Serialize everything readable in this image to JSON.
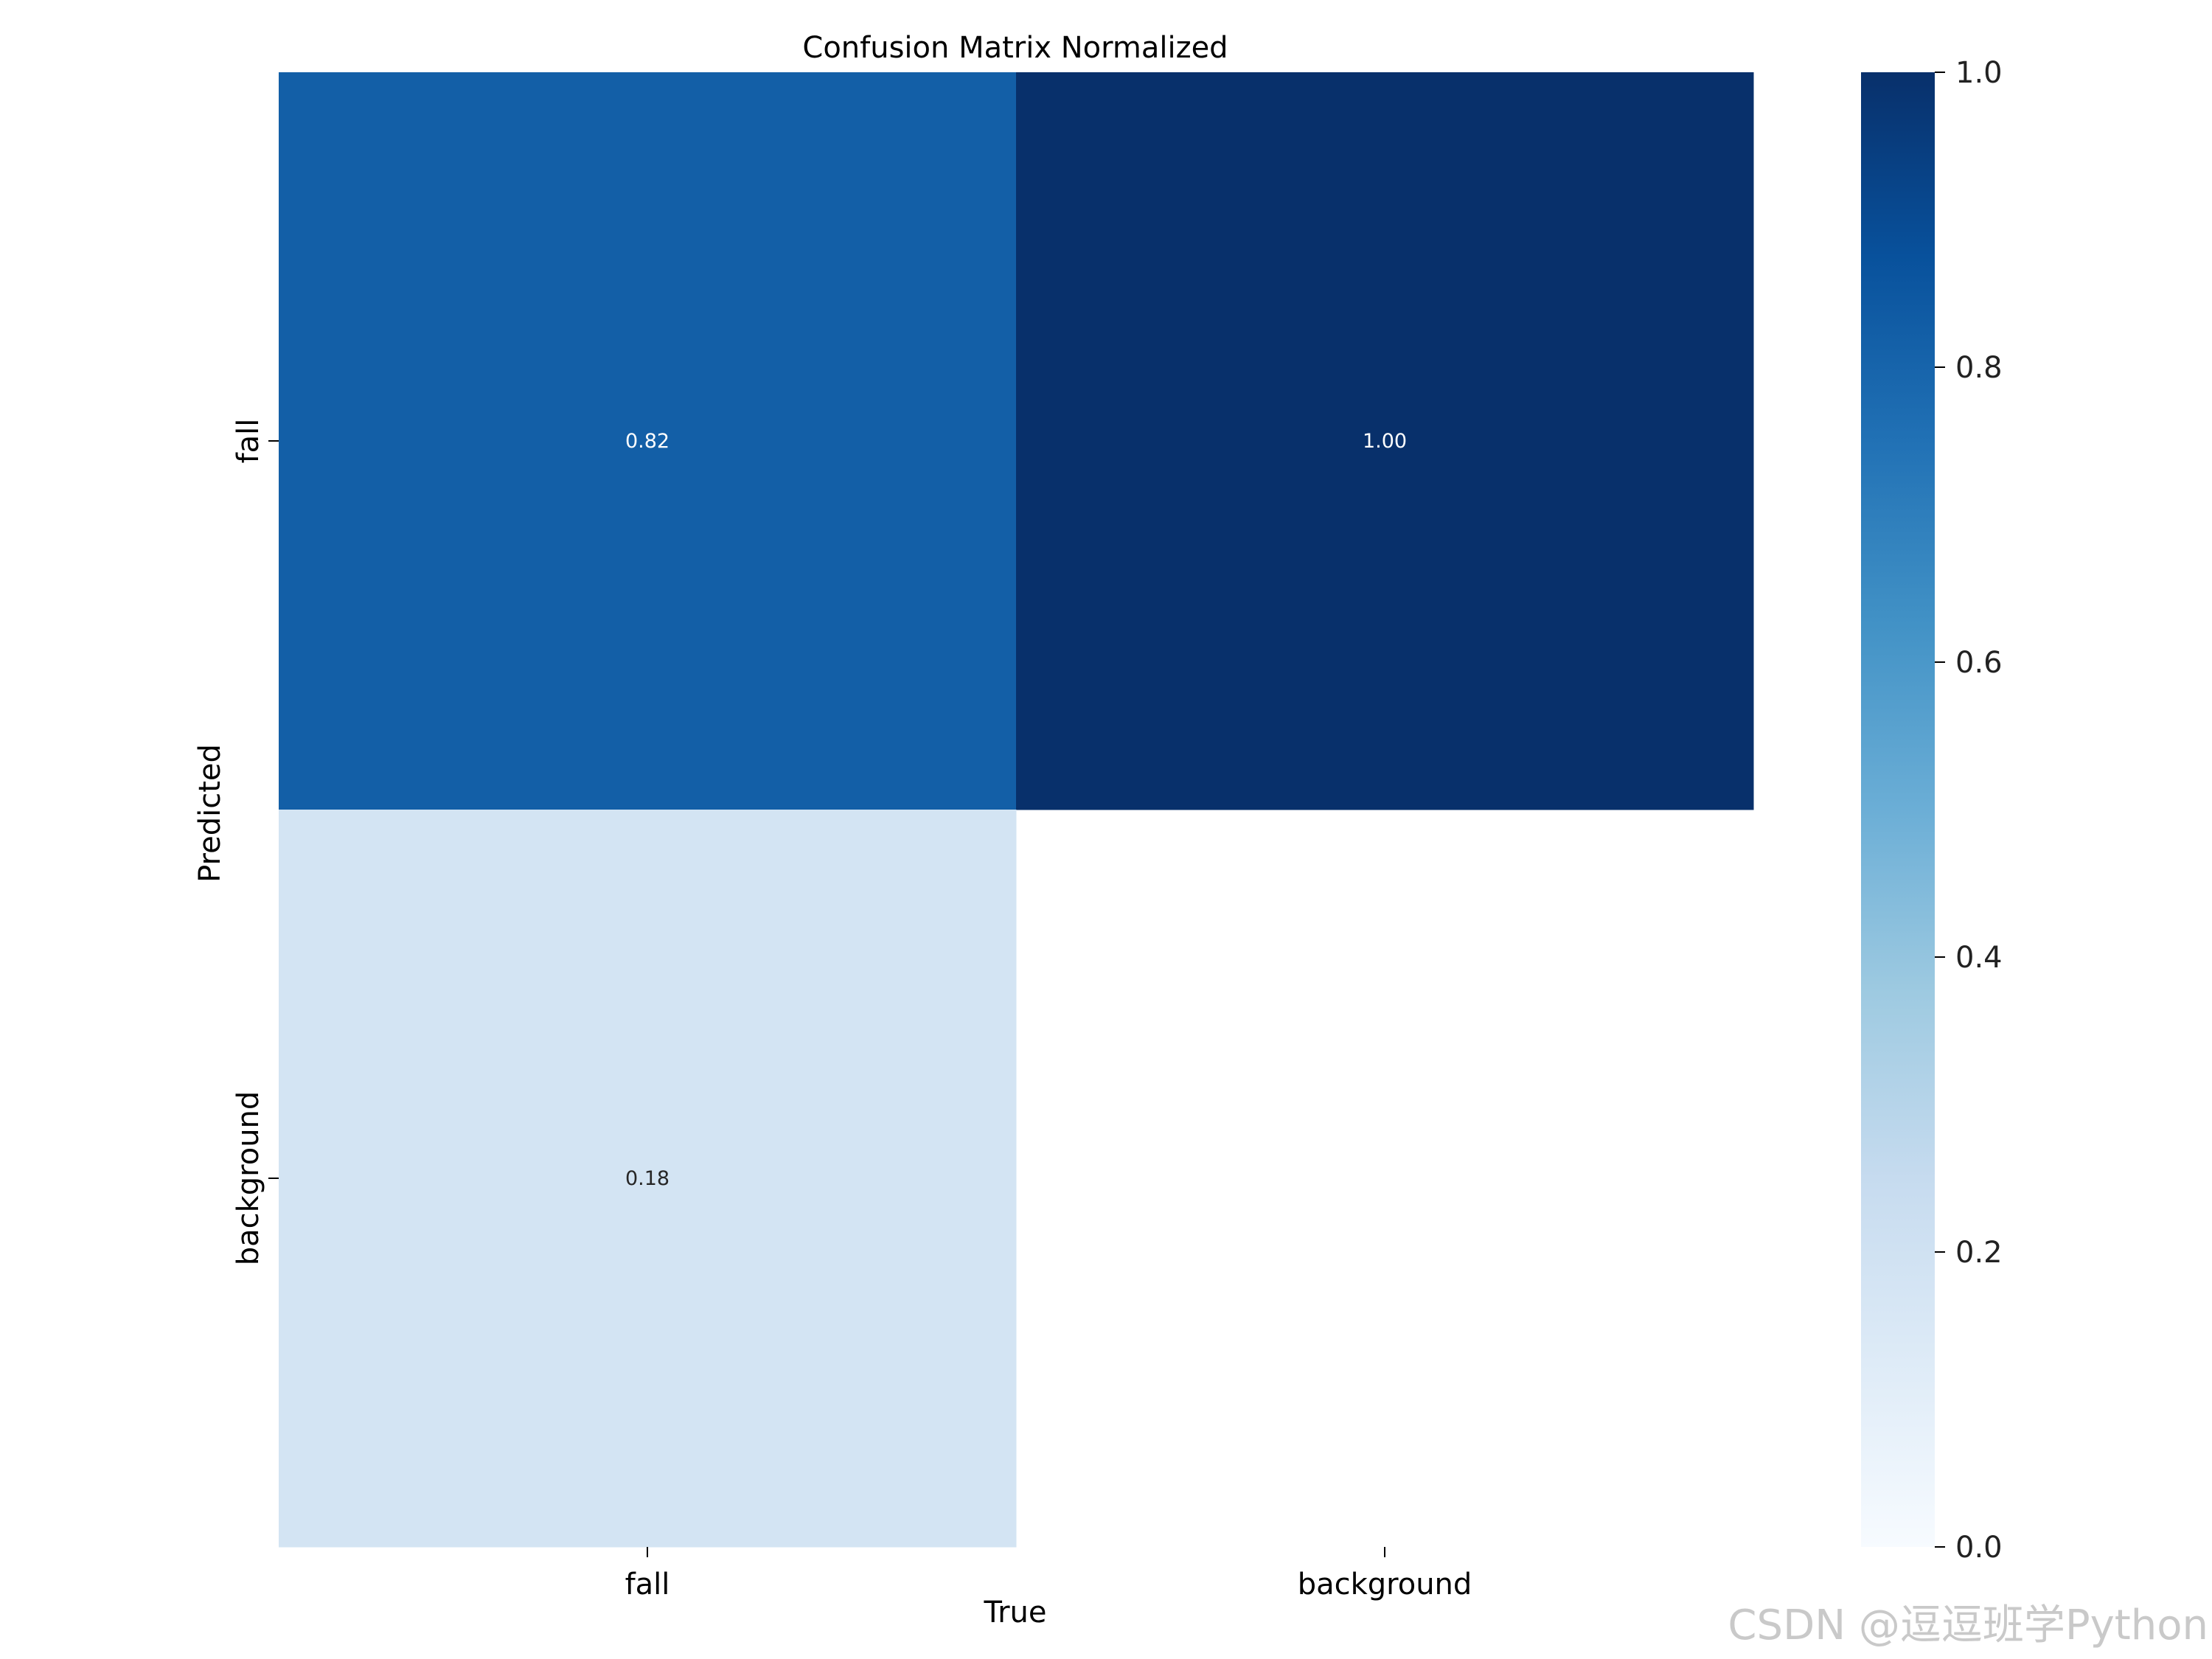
{
  "chart_data": {
    "type": "heatmap",
    "title": "Confusion Matrix Normalized",
    "xlabel": "True",
    "ylabel": "Predicted",
    "x_categories": [
      "fall",
      "background"
    ],
    "y_categories": [
      "fall",
      "background"
    ],
    "values": [
      [
        0.82,
        1.0
      ],
      [
        0.18,
        null
      ]
    ],
    "cell_labels": [
      [
        "0.82",
        "1.00"
      ],
      [
        "0.18",
        ""
      ]
    ],
    "colorbar": {
      "range": [
        0.0,
        1.0
      ],
      "ticks": [
        0.0,
        0.2,
        0.4,
        0.6,
        0.8,
        1.0
      ],
      "tick_labels": [
        "0.0",
        "0.2",
        "0.4",
        "0.6",
        "0.8",
        "1.0"
      ]
    },
    "colormap": [
      "#f7fbff",
      "#deebf7",
      "#c6dbef",
      "#9ecae1",
      "#6baed6",
      "#4292c6",
      "#2171b5",
      "#08519c",
      "#08306b"
    ]
  },
  "watermark": "CSDN @逗逗班学Python"
}
